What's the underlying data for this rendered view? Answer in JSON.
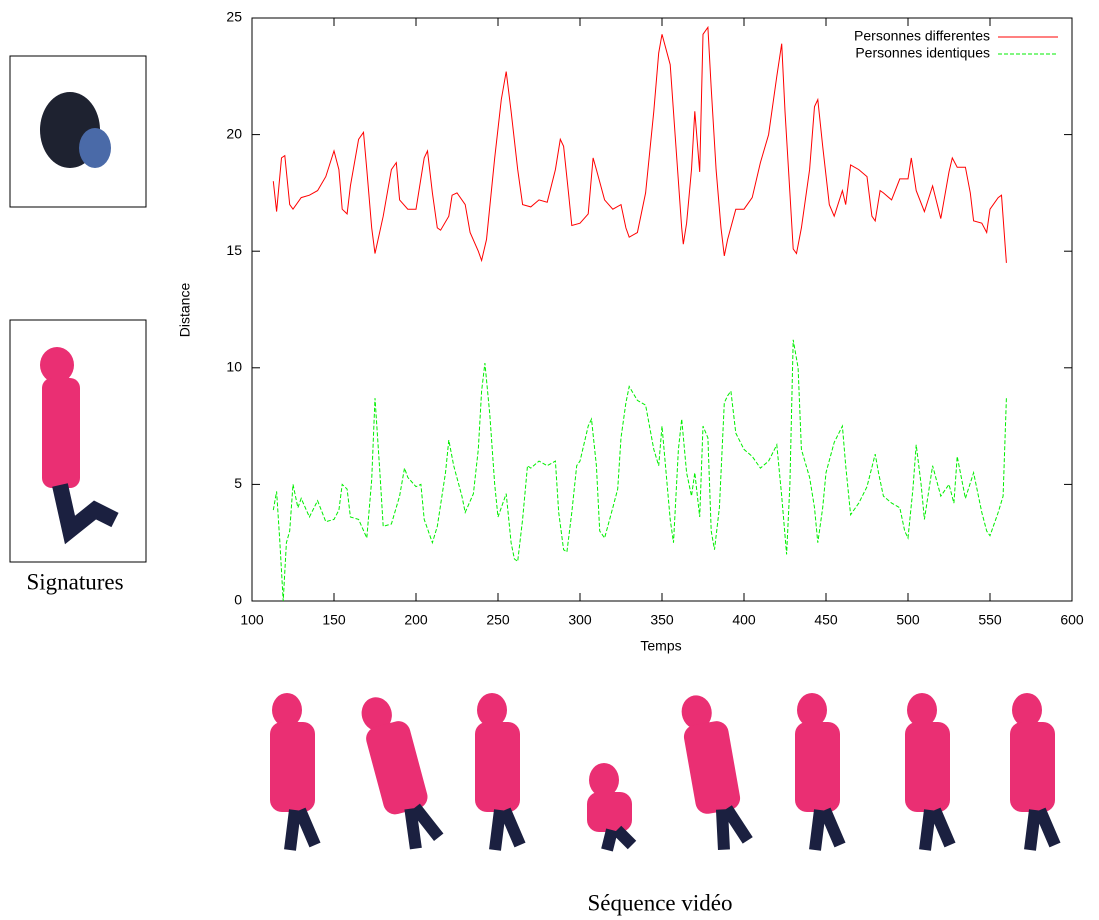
{
  "chart_data": {
    "type": "line",
    "xlabel": "Temps",
    "ylabel": "Distance",
    "xlim": [
      100,
      600
    ],
    "xticks": [
      100,
      150,
      200,
      250,
      300,
      350,
      400,
      450,
      500,
      550,
      600
    ],
    "ylim": [
      0,
      25
    ],
    "yticks": [
      0,
      5,
      10,
      15,
      20,
      25
    ],
    "legend": "upper right",
    "series": [
      {
        "name": "Personnes differentes",
        "color": "#ff0000",
        "dashed": false,
        "x": [
          113,
          115,
          118,
          120,
          123,
          125,
          130,
          135,
          140,
          145,
          150,
          153,
          155,
          158,
          160,
          165,
          168,
          170,
          173,
          175,
          180,
          185,
          188,
          190,
          195,
          200,
          205,
          207,
          210,
          213,
          215,
          220,
          222,
          225,
          230,
          233,
          238,
          240,
          243,
          248,
          252,
          255,
          258,
          262,
          265,
          270,
          275,
          280,
          285,
          288,
          290,
          293,
          295,
          300,
          305,
          308,
          310,
          315,
          320,
          325,
          328,
          330,
          335,
          340,
          345,
          348,
          350,
          355,
          358,
          362,
          363,
          365,
          368,
          370,
          373,
          375,
          378,
          380,
          383,
          386,
          388,
          390,
          395,
          400,
          405,
          410,
          415,
          420,
          423,
          425,
          428,
          430,
          432,
          435,
          440,
          443,
          445,
          448,
          452,
          455,
          460,
          462,
          465,
          470,
          475,
          478,
          480,
          483,
          485,
          490,
          495,
          500,
          502,
          505,
          510,
          515,
          520,
          525,
          527,
          530,
          535,
          538,
          540,
          545,
          548,
          550,
          555,
          557,
          560
        ],
        "values": [
          18,
          16.7,
          19,
          19.1,
          17,
          16.8,
          17.3,
          17.4,
          17.6,
          18.2,
          19.3,
          18.5,
          16.8,
          16.6,
          17.8,
          19.8,
          20.1,
          18.5,
          16,
          14.9,
          16.5,
          18.5,
          18.8,
          17.2,
          16.8,
          16.8,
          19,
          19.3,
          17.5,
          16,
          15.9,
          16.5,
          17.4,
          17.5,
          17,
          15.8,
          15,
          14.6,
          15.5,
          19,
          21.5,
          22.7,
          21,
          18.5,
          17,
          16.9,
          17.2,
          17.1,
          18.5,
          19.8,
          19.5,
          17.5,
          16.1,
          16.2,
          16.6,
          19,
          18.5,
          17.2,
          16.8,
          17,
          16,
          15.6,
          15.8,
          17.5,
          21,
          23.5,
          24.3,
          23,
          20,
          16,
          15.3,
          16.2,
          18.5,
          21,
          18.4,
          24.3,
          24.6,
          22,
          18.5,
          16,
          14.8,
          15.5,
          16.8,
          16.8,
          17.3,
          18.8,
          20,
          22.5,
          23.9,
          21,
          17.5,
          15.1,
          14.9,
          16,
          18.5,
          21.2,
          21.5,
          19.5,
          17,
          16.5,
          17.6,
          17,
          18.7,
          18.5,
          18.2,
          16.5,
          16.3,
          17.6,
          17.5,
          17.2,
          18.1,
          18.1,
          19,
          17.6,
          16.7,
          17.8,
          16.4,
          18.4,
          19,
          18.6,
          18.6,
          17.5,
          16.3,
          16.2,
          15.8,
          16.8,
          17.3,
          17.4,
          14.5
        ]
      },
      {
        "name": "Personnes identiques",
        "color": "#00ee00",
        "dashed": true,
        "x": [
          113,
          115,
          117,
          119,
          121,
          123,
          125,
          128,
          130,
          135,
          140,
          145,
          150,
          153,
          155,
          158,
          160,
          165,
          170,
          173,
          175,
          178,
          180,
          185,
          190,
          193,
          195,
          200,
          203,
          205,
          210,
          213,
          218,
          220,
          223,
          228,
          230,
          235,
          238,
          240,
          242,
          245,
          248,
          250,
          255,
          258,
          260,
          262,
          265,
          268,
          270,
          275,
          280,
          285,
          287,
          290,
          292,
          295,
          298,
          300,
          305,
          307,
          310,
          312,
          315,
          320,
          323,
          325,
          328,
          330,
          335,
          340,
          345,
          348,
          350,
          355,
          357,
          360,
          362,
          365,
          368,
          370,
          373,
          375,
          378,
          380,
          382,
          385,
          388,
          390,
          392,
          395,
          400,
          405,
          410,
          415,
          420,
          423,
          426,
          428,
          430,
          433,
          435,
          440,
          443,
          445,
          448,
          450,
          455,
          460,
          462,
          465,
          470,
          475,
          480,
          482,
          485,
          490,
          495,
          498,
          500,
          503,
          505,
          508,
          510,
          515,
          520,
          525,
          528,
          530,
          535,
          540,
          545,
          548,
          550,
          555,
          558,
          560
        ],
        "values": [
          3.9,
          4.7,
          2.5,
          0,
          2.5,
          3,
          5,
          4,
          4.4,
          3.6,
          4.3,
          3.4,
          3.5,
          3.9,
          5,
          4.8,
          3.6,
          3.5,
          2.7,
          5.2,
          8.7,
          5.5,
          3.2,
          3.3,
          4.5,
          5.7,
          5.3,
          4.9,
          5,
          3.5,
          2.5,
          3.2,
          5.5,
          6.9,
          5.8,
          4.5,
          3.8,
          4.6,
          6.5,
          9,
          10.2,
          8,
          5,
          3.6,
          4.6,
          2.5,
          1.8,
          1.7,
          3.5,
          5.8,
          5.7,
          6,
          5.8,
          6,
          3.8,
          2.2,
          2.1,
          3.8,
          5.8,
          6,
          7.5,
          7.8,
          5.8,
          3,
          2.7,
          4,
          4.8,
          7,
          8.5,
          9.2,
          8.6,
          8.4,
          6.5,
          5.8,
          7.5,
          3.5,
          2.5,
          6.5,
          7.8,
          5.5,
          4.5,
          5.5,
          3.6,
          7.5,
          7,
          3,
          2.2,
          4,
          8.5,
          8.8,
          9,
          7.2,
          6.5,
          6.2,
          5.7,
          6,
          6.7,
          4.5,
          2,
          5,
          11.2,
          10,
          6.5,
          5.3,
          4,
          2.5,
          4,
          5.5,
          6.8,
          7.5,
          5.8,
          3.7,
          4.2,
          4.9,
          6.3,
          5.5,
          4.5,
          4.2,
          4,
          3,
          2.7,
          4.8,
          6.7,
          5,
          3.5,
          5.8,
          4.5,
          5,
          4.2,
          6.2,
          4.4,
          5.5,
          3.8,
          3,
          2.8,
          3.8,
          4.5,
          8.7
        ]
      }
    ]
  },
  "captions": {
    "signatures": "Signatures",
    "sequence": "Séquence vidéo"
  }
}
